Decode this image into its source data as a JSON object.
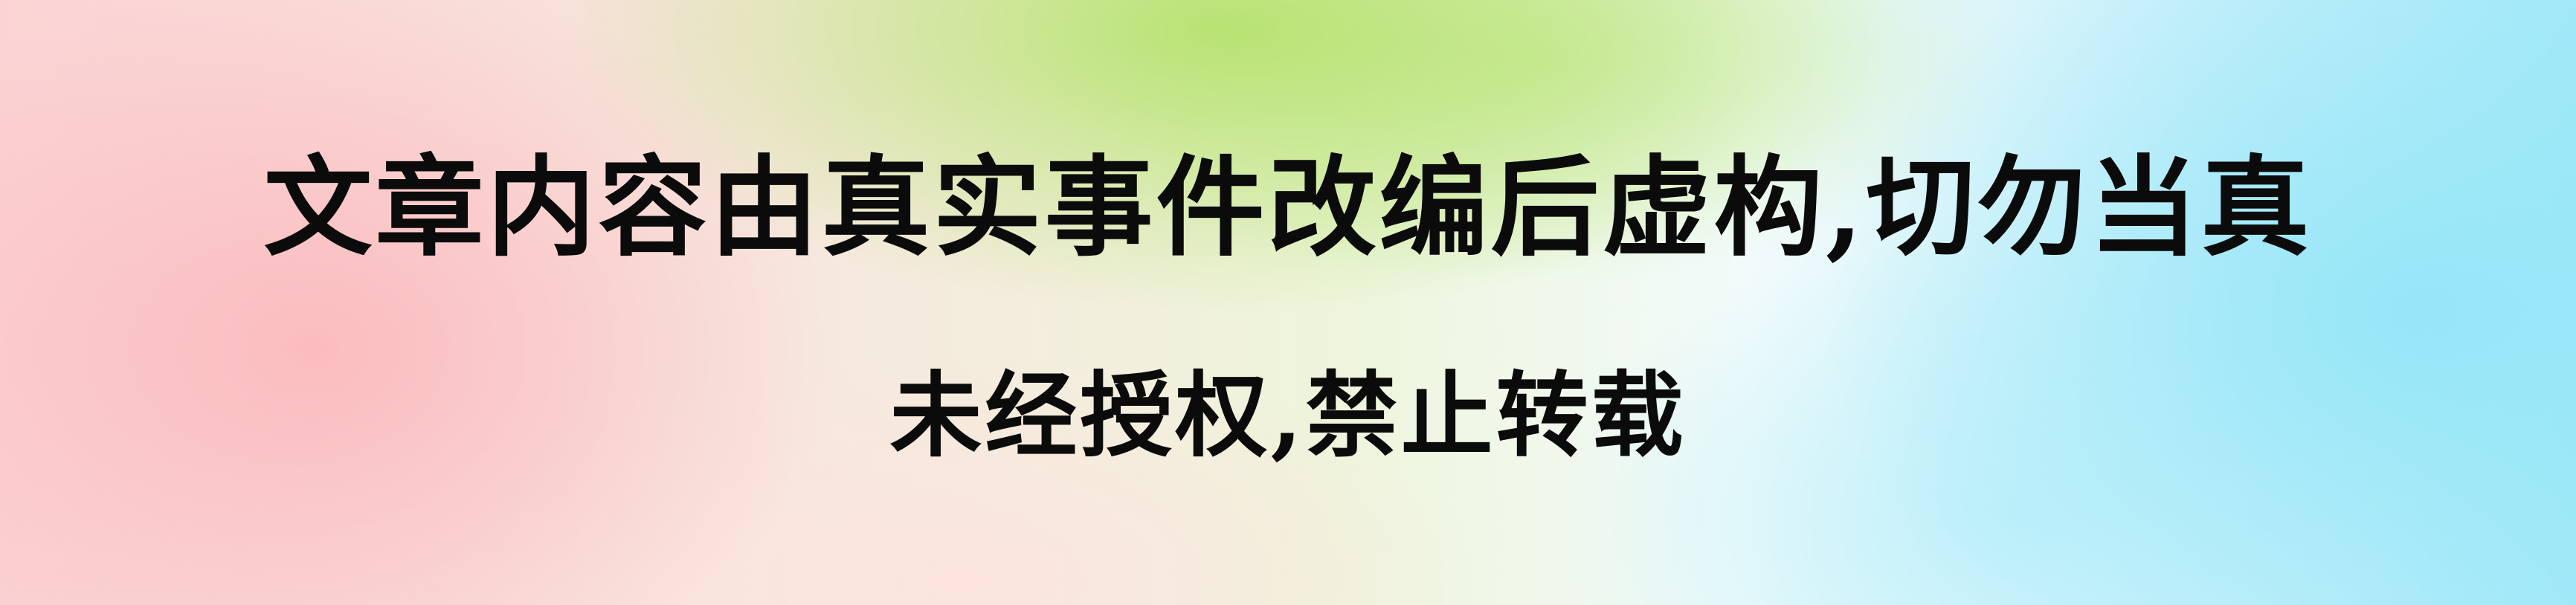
{
  "banner": {
    "line1": "文章内容由真实事件改编后虚构,切勿当真",
    "line2": "未经授权,禁止转载"
  },
  "colors": {
    "text": "#0b0b0b",
    "left_gradient": "#fbbabe",
    "top_center_gradient": "#b6e26e",
    "right_gradient": "#94e6f8"
  }
}
